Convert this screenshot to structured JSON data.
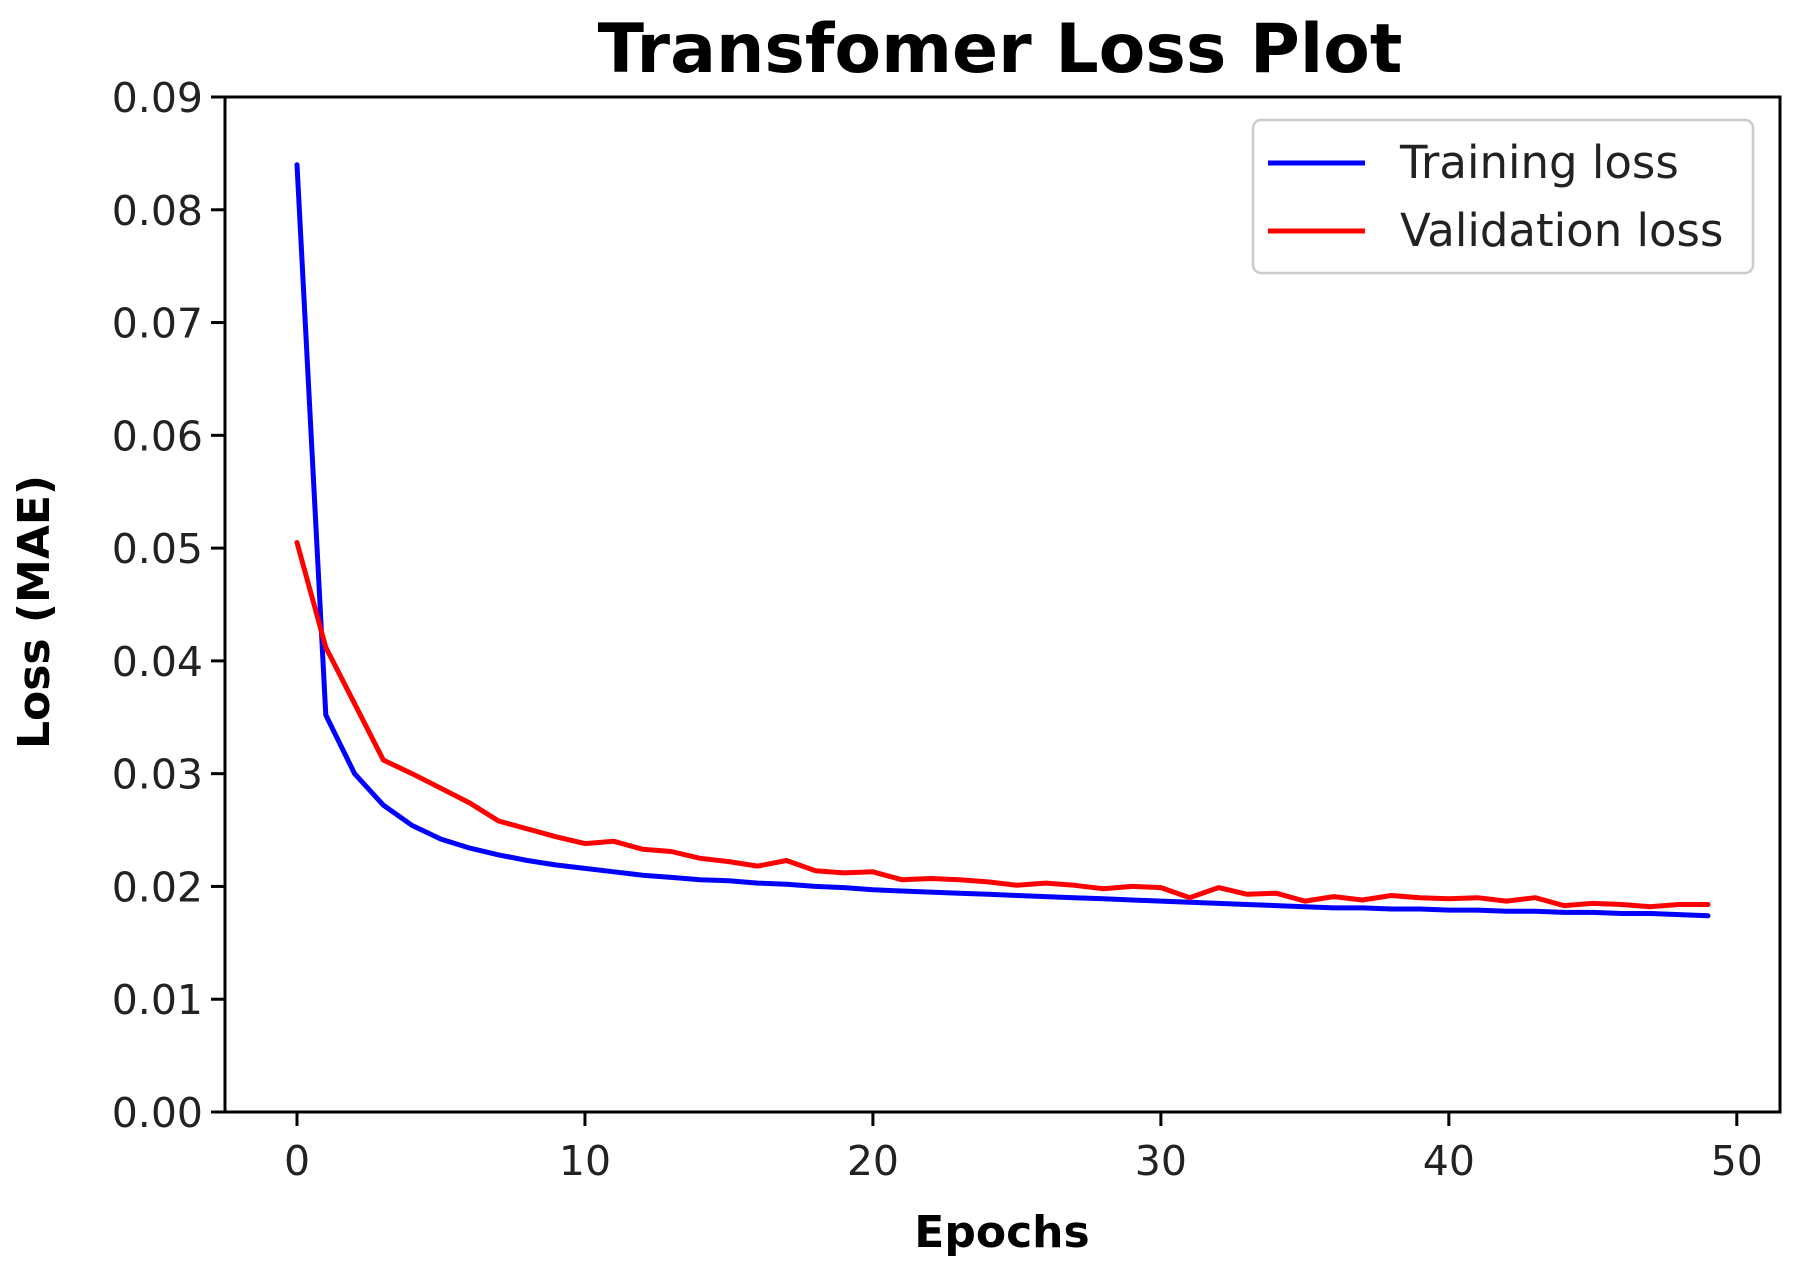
{
  "chart_data": {
    "type": "line",
    "title": "Transfomer Loss Plot",
    "xlabel": "Epochs",
    "ylabel": "Loss (MAE)",
    "xlim": [
      -2.5,
      51.5
    ],
    "ylim": [
      0.0,
      0.09
    ],
    "xticks": [
      0,
      10,
      20,
      30,
      40,
      50
    ],
    "yticks": [
      0.0,
      0.01,
      0.02,
      0.03,
      0.04,
      0.05,
      0.06,
      0.07,
      0.08,
      0.09
    ],
    "xtick_labels": [
      "0",
      "10",
      "20",
      "30",
      "40",
      "50"
    ],
    "ytick_labels": [
      "0.00",
      "0.01",
      "0.02",
      "0.03",
      "0.04",
      "0.05",
      "0.06",
      "0.07",
      "0.08",
      "0.09"
    ],
    "grid": false,
    "legend_position": "top-right",
    "x": [
      0,
      1,
      2,
      3,
      4,
      5,
      6,
      7,
      8,
      9,
      10,
      11,
      12,
      13,
      14,
      15,
      16,
      17,
      18,
      19,
      20,
      21,
      22,
      23,
      24,
      25,
      26,
      27,
      28,
      29,
      30,
      31,
      32,
      33,
      34,
      35,
      36,
      37,
      38,
      39,
      40,
      41,
      42,
      43,
      44,
      45,
      46,
      47,
      48,
      49
    ],
    "series": [
      {
        "name": "Training loss",
        "color": "#0000ff",
        "values": [
          0.084,
          0.0352,
          0.03,
          0.0272,
          0.0254,
          0.0242,
          0.0234,
          0.0228,
          0.0223,
          0.0219,
          0.0216,
          0.0213,
          0.021,
          0.0208,
          0.0206,
          0.0205,
          0.0203,
          0.0202,
          0.02,
          0.0199,
          0.0197,
          0.0196,
          0.0195,
          0.0194,
          0.0193,
          0.0192,
          0.0191,
          0.019,
          0.0189,
          0.0188,
          0.0187,
          0.0186,
          0.0185,
          0.0184,
          0.0183,
          0.0182,
          0.0181,
          0.0181,
          0.018,
          0.018,
          0.0179,
          0.0179,
          0.0178,
          0.0178,
          0.0177,
          0.0177,
          0.0176,
          0.0176,
          0.0175,
          0.0174
        ]
      },
      {
        "name": "Validation loss",
        "color": "#ff0000",
        "values": [
          0.0505,
          0.0412,
          0.0362,
          0.0312,
          0.03,
          0.0287,
          0.0274,
          0.0258,
          0.0251,
          0.0244,
          0.0238,
          0.024,
          0.0233,
          0.0231,
          0.0225,
          0.0222,
          0.0218,
          0.0223,
          0.0214,
          0.0212,
          0.0213,
          0.0206,
          0.0207,
          0.0206,
          0.0204,
          0.0201,
          0.0203,
          0.0201,
          0.0198,
          0.02,
          0.0199,
          0.019,
          0.0199,
          0.0193,
          0.0194,
          0.0187,
          0.0191,
          0.0188,
          0.0192,
          0.019,
          0.0189,
          0.019,
          0.0187,
          0.019,
          0.0183,
          0.0185,
          0.0184,
          0.0182,
          0.0184,
          0.0184
        ]
      }
    ]
  }
}
